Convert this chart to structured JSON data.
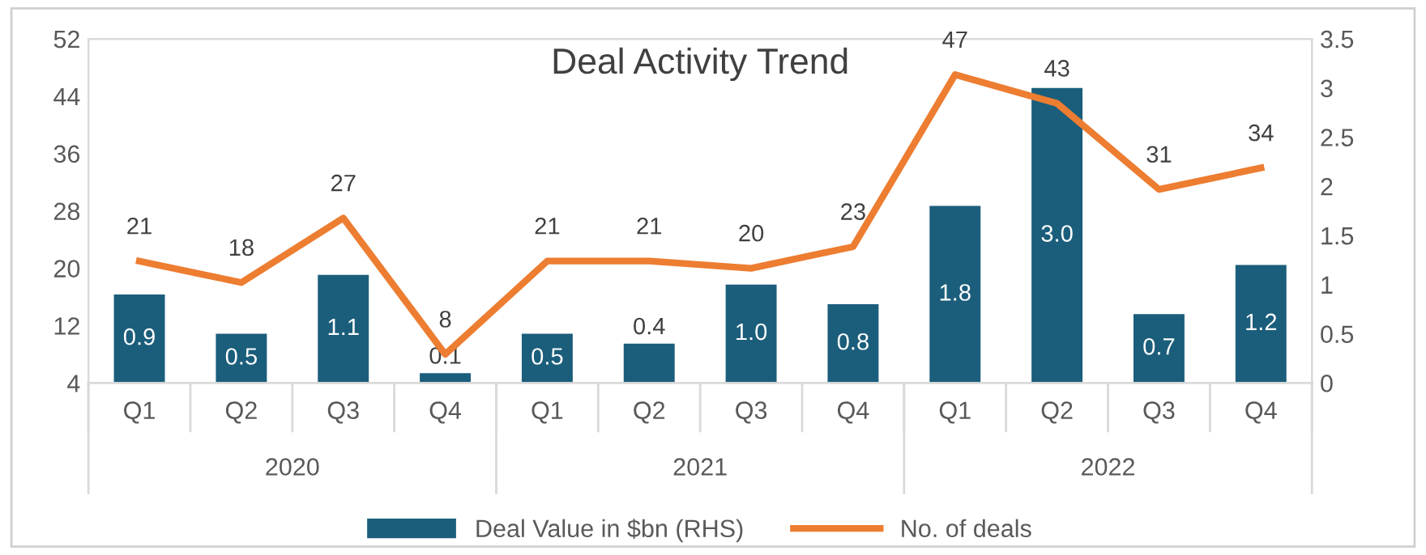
{
  "chart_data": {
    "type": "bar",
    "title": "Deal Activity Trend",
    "categories": [
      "Q1",
      "Q2",
      "Q3",
      "Q4",
      "Q1",
      "Q2",
      "Q3",
      "Q4",
      "Q1",
      "Q2",
      "Q3",
      "Q4"
    ],
    "annotations": [
      "2020",
      "2021",
      "2022"
    ],
    "series": [
      {
        "name": "Deal Value in $bn (RHS)",
        "axis": "y2",
        "color": "#1b5e7b",
        "values": [
          0.9,
          0.5,
          1.1,
          0.1,
          0.5,
          0.4,
          1.0,
          0.8,
          1.8,
          3.0,
          0.7,
          1.2
        ],
        "value_labels": [
          "0.9",
          "0.5",
          "1.1",
          "0.1",
          "0.5",
          "0.4",
          "1.0",
          "0.8",
          "1.8",
          "3.0",
          "0.7",
          "1.2"
        ]
      },
      {
        "name": "No. of deals",
        "type": "line",
        "color": "#ed7d31",
        "values": [
          21,
          18,
          27,
          8,
          21,
          21,
          20,
          23,
          47,
          43,
          31,
          34
        ]
      }
    ],
    "ylim": [
      4,
      52
    ],
    "yticks": [
      4,
      12,
      20,
      28,
      36,
      44,
      52
    ],
    "y2lim": [
      0,
      3.5
    ],
    "y2ticks": [
      0,
      0.5,
      1,
      1.5,
      2,
      2.5,
      3,
      3.5
    ],
    "data_labels": true,
    "legend": "bottom",
    "grid": false,
    "marker": "none",
    "line_style": "solid"
  }
}
